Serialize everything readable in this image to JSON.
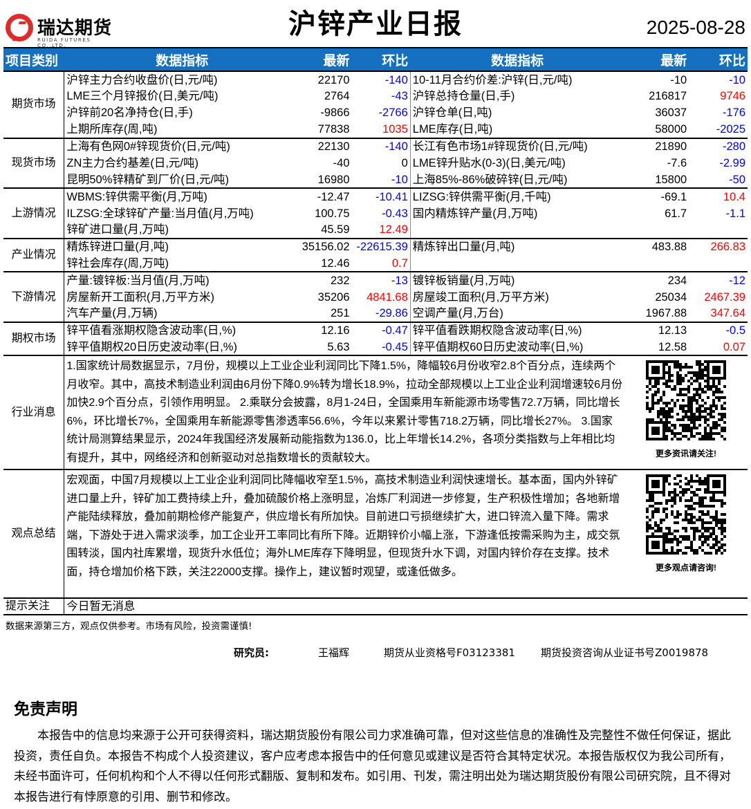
{
  "header": {
    "logo_cn": "瑞达期货",
    "logo_en": "RUIDA FUTURES CO.,LTD.",
    "title": "沪锌产业日报",
    "date": "2025-08-28"
  },
  "columns": {
    "category": "项目类别",
    "indicator": "数据指标",
    "latest": "最新",
    "change": "环比",
    "indicator2": "数据指标",
    "latest2": "最新",
    "change2": "环比"
  },
  "colors": {
    "negative": "#0000ff",
    "positive": "#ff0000",
    "header_bg": "#1570c2"
  },
  "sections": [
    {
      "category": "期货市场",
      "rows": [
        [
          "沪锌主力合约收盘价(日,元/吨)",
          "22170",
          "-140",
          "10-11月合约价差:沪锌(日,元/吨)",
          "-10",
          "-10"
        ],
        [
          "LME三个月锌报价(日,美元/吨)",
          "2764",
          "-43",
          "沪锌总持仓量(日,手)",
          "216817",
          "9746"
        ],
        [
          "沪锌前20名净持仓(日,手)",
          "-9866",
          "-2766",
          "沪锌仓单(日,吨)",
          "36037",
          "-176"
        ],
        [
          "上期所库存(周,吨)",
          "77838",
          "1035",
          "LME库存(日,吨)",
          "58000",
          "-2025"
        ]
      ]
    },
    {
      "category": "现货市场",
      "rows": [
        [
          "上海有色网0#锌现货价(日,元/吨)",
          "22130",
          "-140",
          "长江有色市场1#锌现货价(日,元/吨)",
          "21890",
          "-280"
        ],
        [
          "ZN主力合约基差(日,元/吨)",
          "-40",
          "0",
          "LME锌升贴水(0-3)(日,美元/吨)",
          "-7.6",
          "-2.99"
        ],
        [
          "昆明50%锌精矿到厂价(日,元/吨)",
          "16980",
          "-10",
          "上海85%-86%破碎锌(日,元/吨)",
          "15800",
          "-50"
        ]
      ]
    },
    {
      "category": "上游情况",
      "rows": [
        [
          "WBMS:锌供需平衡(月,万吨)",
          "-12.47",
          "-10.41",
          "LIZSG:锌供需平衡(月,千吨)",
          "-69.1",
          "10.4"
        ],
        [
          "ILZSG:全球锌矿产量:当月值(月,万吨)",
          "100.75",
          "-0.43",
          "国内精炼锌产量(月,万吨)",
          "61.7",
          "-1.1"
        ],
        [
          "锌矿进口量(月,万吨)",
          "45.59",
          "12.49",
          "",
          "",
          ""
        ]
      ]
    },
    {
      "category": "产业情况",
      "rows": [
        [
          "精炼锌进口量(月,吨)",
          "35156.02",
          "-22615.39",
          "精炼锌出口量(月,吨)",
          "483.88",
          "266.83"
        ],
        [
          "锌社会库存(周,万吨)",
          "12.46",
          "0.7",
          "",
          "",
          ""
        ]
      ]
    },
    {
      "category": "下游情况",
      "rows": [
        [
          "产量:镀锌板:当月值(月,万吨)",
          "232",
          "-13",
          "镀锌板销量(月,万吨)",
          "234",
          "-12"
        ],
        [
          "房屋新开工面积(月,万平方米)",
          "35206",
          "4841.68",
          "房屋竣工面积(月,万平方米)",
          "25034",
          "2467.39"
        ],
        [
          "汽车产量(月,万辆)",
          "251",
          "-29.86",
          "空调产量(月,万台)",
          "1967.88",
          "347.64"
        ]
      ]
    },
    {
      "category": "期权市场",
      "rows": [
        [
          "锌平值看涨期权隐含波动率(日,%)",
          "12.16",
          "-0.47",
          "锌平值看跌期权隐含波动率(日,%)",
          "12.13",
          "-0.5"
        ],
        [
          "锌平值期权20日历史波动率(日,%)",
          "5.63",
          "-0.45",
          "锌平值期权60日历史波动率(日,%)",
          "12.58",
          "0.07"
        ]
      ]
    }
  ],
  "news": {
    "category": "行业消息",
    "text": "1.国家统计局数据显示，7月份，规模以上工业企业利润同比下降1.5%，降幅较6月份收窄2.8个百分点，连续两个月收窄。其中，高技术制造业利润由6月份下降0.9%转为增长18.9%，拉动全部规模以上工业企业利润增速较6月份加快2.9个百分点，引领作用明显。 2.乘联分会披露，8月1-24日，全国乘用车新能源市场零售72.7万辆，同比增长6%，环比增长7%，全国乘用车新能源零售渗透率56.6%，今年以来累计零售718.2万辆，同比增长27%。 3.国家统计局测算结果显示，2024年我国经济发展新动能指数为136.0，比上年增长14.2%，各项分类指数与上年相比均有提升，其中，网络经济和创新驱动对总指数增长的贡献较大。",
    "qr_caption": "更多资讯请关注!"
  },
  "view": {
    "category": "观点总结",
    "text": "宏观面，中国7月规模以上工业企业利润同比降幅收窄至1.5%，高技术制造业利润快速增长。基本面，国内外锌矿进口量上升，锌矿加工费持续上升，叠加硫酸价格上涨明显，冶炼厂利润进一步修复，生产积极性增加；各地新增产能陆续释放，叠加前期检修产能复产，供应增长有所加快。目前进口亏损继续扩大，进口锌流入量下降。需求端，下游处于进入需求淡季，加工企业开工率同比有所下降。近期锌价小幅上涨，下游逢低按需采购为主，成交氛围转淡，国内社库累增，现货升水低位；海外LME库存下降明显，但现货升水下调，对国内锌价存在支撑。技术面，持仓增加价格下跌，关注22000支撑。操作上，建议暂时观望，或逢低做多。",
    "qr_caption": "更多观点请咨询!"
  },
  "tips": {
    "category": "提示关注",
    "text": "今日暂无消息"
  },
  "footer": {
    "note": "数据来源第三方，观点仅供参考。市场有风险，投资需谨慎!",
    "researcher_label": "研究员:",
    "researcher_name": "王福辉",
    "license1": "期货从业资格号F03123381",
    "license2": "期货投资咨询从业证书号Z0019878"
  },
  "disclaimer": {
    "title": "免责声明",
    "text": "本报告中的信息均来源于公开可获得资料，瑞达期货股份有限公司力求准确可靠，但对这些信息的准确性及完整性不做任何保证，据此投资，责任自负。本报告不构成个人投资建议，客户应考虑本报告中的任何意见或建议是否符合其特定状况。本报告版权仅为我公司所有，未经书面许可，任何机构和个人不得以任何形式翻版、复制和发布。如引用、刊发，需注明出处为瑞达期货股份有限公司研究院，且不得对本报告进行有悖原意的引用、删节和修改。"
  }
}
